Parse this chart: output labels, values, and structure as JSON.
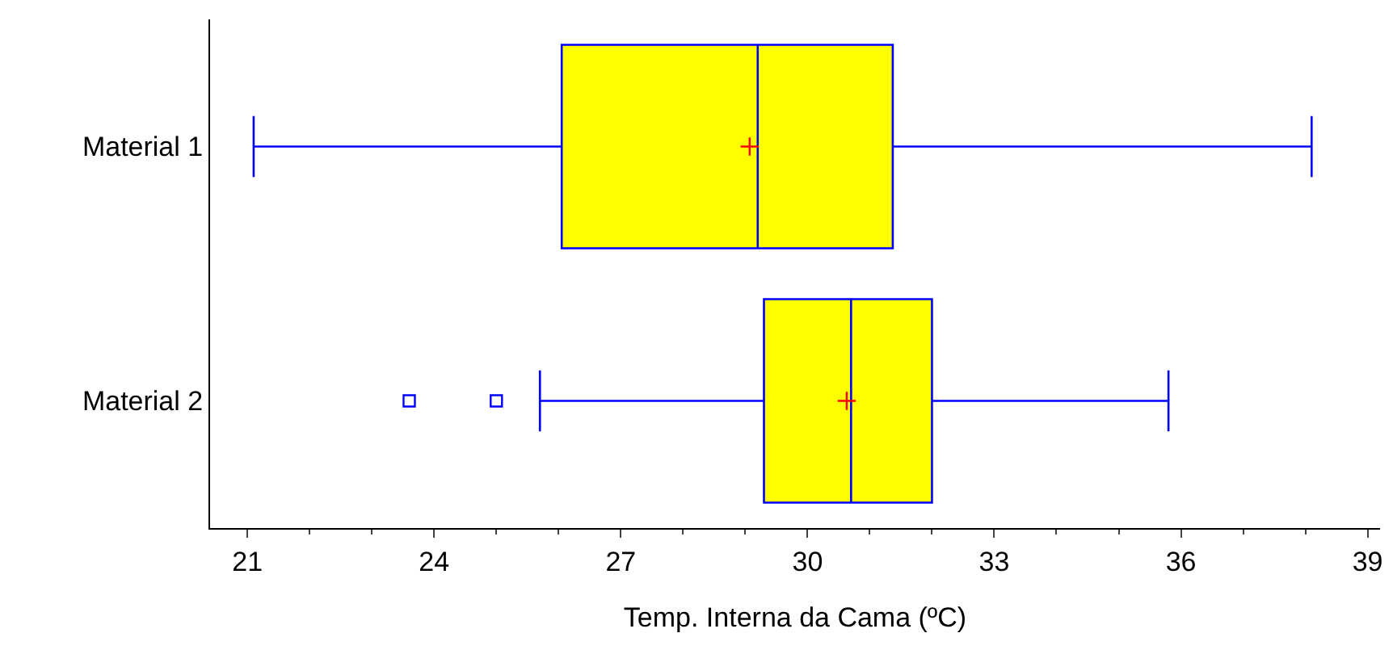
{
  "chart_data": {
    "type": "box",
    "orientation": "horizontal",
    "xlabel": "Temp. Interna da Cama (ºC)",
    "categories": [
      "Material 1",
      "Material 2"
    ],
    "boxes": [
      {
        "low": 21.1,
        "q1": 26.05,
        "median": 29.2,
        "q3": 31.37,
        "high": 38.1,
        "mean": 29.07
      },
      {
        "low": 25.7,
        "q1": 29.3,
        "median": 30.7,
        "q3": 32.0,
        "high": 35.8,
        "mean": 30.63,
        "outliers": [
          23.6,
          25.0
        ]
      }
    ],
    "color": "#ffff00",
    "xlim": [
      20.4,
      39.2
    ],
    "xticks": [
      21,
      24,
      27,
      30,
      33,
      36,
      39
    ]
  }
}
